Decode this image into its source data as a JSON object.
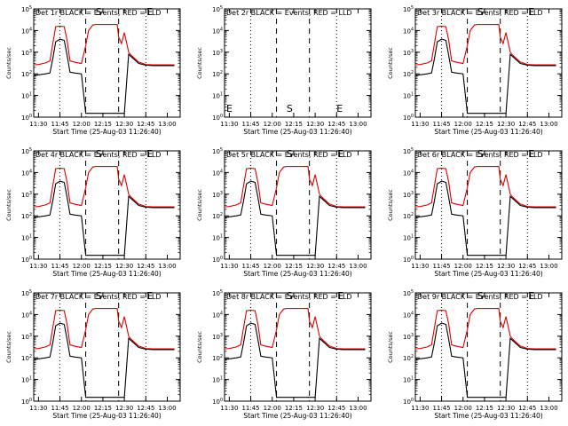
{
  "figure": {
    "background": "#ffffff",
    "colors": {
      "events": "#000000",
      "lld": "#dd0000"
    }
  },
  "panel_template": {
    "title_suffix": " BLACK = Events, RED = LLD",
    "xlabel": "Start Time (25-Aug-03 11:26:40)",
    "ylabel": "Counts/sec",
    "xticks": [
      "11:30",
      "11:45",
      "12:00",
      "12:15",
      "12:30",
      "12:45",
      "13:00"
    ],
    "yticks": [
      "10",
      "10",
      "10",
      "10",
      "10",
      "10"
    ],
    "ytick_exponents": [
      "0",
      "1",
      "2",
      "3",
      "4",
      "5"
    ],
    "markers": [
      "E",
      "S",
      "E"
    ]
  },
  "chart_data": [
    {
      "type": "line",
      "title": "Det 1r BLACK = Events, RED = LLD",
      "empty": false,
      "xlabel": "Start Time (25-Aug-03 11:26:40)",
      "ylabel": "Counts/sec",
      "yscale": "log",
      "ylim": [
        1,
        100000
      ],
      "x": [
        "11:26:40",
        "11:30",
        "11:35",
        "11:38",
        "11:40",
        "11:42",
        "11:45",
        "11:48",
        "11:50",
        "11:52",
        "11:55",
        "12:00",
        "12:03",
        "12:05",
        "12:08",
        "12:10",
        "12:15",
        "12:20",
        "12:25",
        "12:26",
        "12:28",
        "12:30",
        "12:33",
        "12:35",
        "12:40",
        "12:45",
        "12:50",
        "12:55",
        "13:00",
        "13:05"
      ],
      "series": [
        {
          "name": "Events",
          "color": "#000000",
          "values": [
            80,
            90,
            100,
            110,
            500,
            3000,
            4000,
            3500,
            700,
            120,
            110,
            100,
            1.5,
            1.5,
            1.5,
            1.5,
            1.5,
            1.5,
            1.5,
            1.5,
            1.5,
            1.5,
            800,
            600,
            300,
            250,
            240,
            240,
            240,
            240
          ]
        },
        {
          "name": "LLD",
          "color": "#dd0000",
          "values": [
            260,
            270,
            320,
            400,
            2500,
            15000,
            16000,
            15000,
            3500,
            400,
            350,
            300,
            2000,
            10000,
            18000,
            19000,
            19000,
            19000,
            19000,
            5000,
            2500,
            8000,
            1000,
            700,
            350,
            270,
            260,
            260,
            260,
            260
          ]
        }
      ]
    },
    {
      "type": "line",
      "title": "Det 2r BLACK = Events, RED = LLD",
      "empty": true,
      "xlabel": "Start Time (25-Aug-03 11:26:40)",
      "ylabel": "Counts/sec",
      "yscale": "log",
      "ylim": [
        1,
        100000
      ],
      "x": [],
      "series": []
    },
    {
      "type": "line",
      "title": "Det 3r BLACK = Events, RED = LLD",
      "empty": false,
      "xlabel": "Start Time (25-Aug-03 11:26:40)",
      "ylabel": "Counts/sec",
      "yscale": "log",
      "ylim": [
        1,
        100000
      ],
      "x": [
        "11:26:40",
        "11:30",
        "11:35",
        "11:38",
        "11:40",
        "11:42",
        "11:45",
        "11:48",
        "11:50",
        "11:52",
        "11:55",
        "12:00",
        "12:03",
        "12:05",
        "12:08",
        "12:10",
        "12:15",
        "12:20",
        "12:25",
        "12:26",
        "12:28",
        "12:30",
        "12:33",
        "12:35",
        "12:40",
        "12:45",
        "12:50",
        "12:55",
        "13:00",
        "13:05"
      ],
      "series": [
        {
          "name": "Events",
          "color": "#000000",
          "values": [
            80,
            90,
            100,
            110,
            500,
            3000,
            4000,
            3500,
            700,
            120,
            110,
            100,
            1.5,
            1.5,
            1.5,
            1.5,
            1.5,
            1.5,
            1.5,
            1.5,
            1.5,
            1.5,
            800,
            600,
            300,
            250,
            240,
            240,
            240,
            240
          ]
        },
        {
          "name": "LLD",
          "color": "#dd0000",
          "values": [
            260,
            270,
            320,
            400,
            2500,
            15000,
            16000,
            15000,
            3500,
            400,
            350,
            300,
            2000,
            10000,
            18000,
            19000,
            19000,
            19000,
            19000,
            5000,
            2500,
            8000,
            1000,
            700,
            350,
            270,
            260,
            260,
            260,
            260
          ]
        }
      ]
    },
    {
      "type": "line",
      "title": "Det 4r BLACK = Events, RED = LLD",
      "empty": false,
      "xlabel": "Start Time (25-Aug-03 11:26:40)",
      "ylabel": "Counts/sec",
      "yscale": "log",
      "ylim": [
        1,
        100000
      ],
      "x": [
        "11:26:40",
        "11:30",
        "11:35",
        "11:38",
        "11:40",
        "11:42",
        "11:45",
        "11:48",
        "11:50",
        "11:52",
        "11:55",
        "12:00",
        "12:03",
        "12:05",
        "12:08",
        "12:10",
        "12:15",
        "12:20",
        "12:25",
        "12:26",
        "12:28",
        "12:30",
        "12:33",
        "12:35",
        "12:40",
        "12:45",
        "12:50",
        "12:55",
        "13:00",
        "13:05"
      ],
      "series": [
        {
          "name": "Events",
          "color": "#000000",
          "values": [
            80,
            90,
            100,
            110,
            500,
            3000,
            4000,
            3500,
            700,
            120,
            110,
            100,
            1.5,
            1.5,
            1.5,
            1.5,
            1.5,
            1.5,
            1.5,
            1.5,
            1.5,
            1.5,
            800,
            600,
            300,
            250,
            240,
            240,
            240,
            240
          ]
        },
        {
          "name": "LLD",
          "color": "#dd0000",
          "values": [
            260,
            270,
            320,
            400,
            2500,
            15000,
            16000,
            15000,
            3500,
            400,
            350,
            300,
            2000,
            10000,
            18000,
            19000,
            19000,
            19000,
            19000,
            5000,
            2500,
            8000,
            1000,
            700,
            350,
            270,
            260,
            260,
            260,
            260
          ]
        }
      ]
    },
    {
      "type": "line",
      "title": "Det 5r BLACK = Events, RED = LLD",
      "empty": false,
      "xlabel": "Start Time (25-Aug-03 11:26:40)",
      "ylabel": "Counts/sec",
      "yscale": "log",
      "ylim": [
        1,
        100000
      ],
      "x": [
        "11:26:40",
        "11:30",
        "11:35",
        "11:38",
        "11:40",
        "11:42",
        "11:45",
        "11:48",
        "11:50",
        "11:52",
        "11:55",
        "12:00",
        "12:03",
        "12:05",
        "12:08",
        "12:10",
        "12:15",
        "12:20",
        "12:25",
        "12:26",
        "12:28",
        "12:30",
        "12:33",
        "12:35",
        "12:40",
        "12:45",
        "12:50",
        "12:55",
        "13:00",
        "13:05"
      ],
      "series": [
        {
          "name": "Events",
          "color": "#000000",
          "values": [
            80,
            90,
            100,
            110,
            500,
            3000,
            4000,
            3500,
            700,
            120,
            110,
            100,
            1.5,
            1.5,
            1.5,
            1.5,
            1.5,
            1.5,
            1.5,
            1.5,
            1.5,
            1.5,
            800,
            600,
            300,
            250,
            240,
            240,
            240,
            240
          ]
        },
        {
          "name": "LLD",
          "color": "#dd0000",
          "values": [
            260,
            270,
            320,
            400,
            2500,
            15000,
            16000,
            15000,
            3500,
            400,
            350,
            300,
            2000,
            10000,
            18000,
            19000,
            19000,
            19000,
            19000,
            5000,
            2500,
            8000,
            1000,
            700,
            350,
            270,
            260,
            260,
            260,
            260
          ]
        }
      ]
    },
    {
      "type": "line",
      "title": "Det 6r BLACK = Events, RED = LLD",
      "empty": false,
      "xlabel": "Start Time (25-Aug-03 11:26:40)",
      "ylabel": "Counts/sec",
      "yscale": "log",
      "ylim": [
        1,
        100000
      ],
      "x": [
        "11:26:40",
        "11:30",
        "11:35",
        "11:38",
        "11:40",
        "11:42",
        "11:45",
        "11:48",
        "11:50",
        "11:52",
        "11:55",
        "12:00",
        "12:03",
        "12:05",
        "12:08",
        "12:10",
        "12:15",
        "12:20",
        "12:25",
        "12:26",
        "12:28",
        "12:30",
        "12:33",
        "12:35",
        "12:40",
        "12:45",
        "12:50",
        "12:55",
        "13:00",
        "13:05"
      ],
      "series": [
        {
          "name": "Events",
          "color": "#000000",
          "values": [
            80,
            90,
            100,
            110,
            500,
            3000,
            4000,
            3500,
            700,
            120,
            110,
            100,
            1.5,
            1.5,
            1.5,
            1.5,
            1.5,
            1.5,
            1.5,
            1.5,
            1.5,
            1.5,
            800,
            600,
            300,
            250,
            240,
            240,
            240,
            240
          ]
        },
        {
          "name": "LLD",
          "color": "#dd0000",
          "values": [
            260,
            270,
            320,
            400,
            2500,
            15000,
            16000,
            15000,
            3500,
            400,
            350,
            300,
            2000,
            10000,
            18000,
            19000,
            19000,
            19000,
            19000,
            5000,
            2500,
            8000,
            1000,
            700,
            350,
            270,
            260,
            260,
            260,
            260
          ]
        }
      ]
    },
    {
      "type": "line",
      "title": "Det 7r BLACK = Events, RED = LLD",
      "empty": false,
      "xlabel": "Start Time (25-Aug-03 11:26:40)",
      "ylabel": "Counts/sec",
      "yscale": "log",
      "ylim": [
        1,
        100000
      ],
      "x": [
        "11:26:40",
        "11:30",
        "11:35",
        "11:38",
        "11:40",
        "11:42",
        "11:45",
        "11:48",
        "11:50",
        "11:52",
        "11:55",
        "12:00",
        "12:03",
        "12:05",
        "12:08",
        "12:10",
        "12:15",
        "12:20",
        "12:25",
        "12:26",
        "12:28",
        "12:30",
        "12:33",
        "12:35",
        "12:40",
        "12:45",
        "12:50",
        "12:55",
        "13:00",
        "13:05"
      ],
      "series": [
        {
          "name": "Events",
          "color": "#000000",
          "values": [
            80,
            90,
            100,
            110,
            500,
            3000,
            4000,
            3500,
            700,
            120,
            110,
            100,
            1.5,
            1.5,
            1.5,
            1.5,
            1.5,
            1.5,
            1.5,
            1.5,
            1.5,
            1.5,
            800,
            600,
            300,
            250,
            240,
            240,
            240,
            240
          ]
        },
        {
          "name": "LLD",
          "color": "#dd0000",
          "values": [
            260,
            270,
            320,
            400,
            2500,
            15000,
            16000,
            15000,
            3500,
            400,
            350,
            300,
            2000,
            10000,
            18000,
            19000,
            19000,
            19000,
            19000,
            5000,
            2500,
            8000,
            1000,
            700,
            350,
            270,
            260,
            260,
            260,
            260
          ]
        }
      ]
    },
    {
      "type": "line",
      "title": "Det 8r BLACK = Events, RED = LLD",
      "empty": false,
      "xlabel": "Start Time (25-Aug-03 11:26:40)",
      "ylabel": "Counts/sec",
      "yscale": "log",
      "ylim": [
        1,
        100000
      ],
      "x": [
        "11:26:40",
        "11:30",
        "11:35",
        "11:38",
        "11:40",
        "11:42",
        "11:45",
        "11:48",
        "11:50",
        "11:52",
        "11:55",
        "12:00",
        "12:03",
        "12:05",
        "12:08",
        "12:10",
        "12:15",
        "12:20",
        "12:25",
        "12:26",
        "12:28",
        "12:30",
        "12:33",
        "12:35",
        "12:40",
        "12:45",
        "12:50",
        "12:55",
        "13:00",
        "13:05"
      ],
      "series": [
        {
          "name": "Events",
          "color": "#000000",
          "values": [
            80,
            90,
            100,
            110,
            500,
            3000,
            4000,
            3500,
            700,
            120,
            110,
            100,
            1.5,
            1.5,
            1.5,
            1.5,
            1.5,
            1.5,
            1.5,
            1.5,
            1.5,
            1.5,
            800,
            600,
            300,
            250,
            240,
            240,
            240,
            240
          ]
        },
        {
          "name": "LLD",
          "color": "#dd0000",
          "values": [
            260,
            270,
            320,
            400,
            2500,
            15000,
            16000,
            15000,
            3500,
            400,
            350,
            300,
            2000,
            10000,
            18000,
            19000,
            19000,
            19000,
            19000,
            5000,
            2500,
            8000,
            1000,
            700,
            350,
            270,
            260,
            260,
            260,
            260
          ]
        }
      ]
    },
    {
      "type": "line",
      "title": "Det 9r BLACK = Events, RED = LLD",
      "empty": false,
      "xlabel": "Start Time (25-Aug-03 11:26:40)",
      "ylabel": "Counts/sec",
      "yscale": "log",
      "ylim": [
        1,
        100000
      ],
      "x": [
        "11:26:40",
        "11:30",
        "11:35",
        "11:38",
        "11:40",
        "11:42",
        "11:45",
        "11:48",
        "11:50",
        "11:52",
        "11:55",
        "12:00",
        "12:03",
        "12:05",
        "12:08",
        "12:10",
        "12:15",
        "12:20",
        "12:25",
        "12:26",
        "12:28",
        "12:30",
        "12:33",
        "12:35",
        "12:40",
        "12:45",
        "12:50",
        "12:55",
        "13:00",
        "13:05"
      ],
      "series": [
        {
          "name": "Events",
          "color": "#000000",
          "values": [
            80,
            90,
            100,
            110,
            500,
            3000,
            4000,
            3500,
            700,
            120,
            110,
            100,
            1.5,
            1.5,
            1.5,
            1.5,
            1.5,
            1.5,
            1.5,
            1.5,
            1.5,
            1.5,
            800,
            600,
            300,
            250,
            240,
            240,
            240,
            240
          ]
        },
        {
          "name": "LLD",
          "color": "#dd0000",
          "values": [
            260,
            270,
            320,
            400,
            2500,
            15000,
            16000,
            15000,
            3500,
            400,
            350,
            300,
            2000,
            10000,
            18000,
            19000,
            19000,
            19000,
            19000,
            5000,
            2500,
            8000,
            1000,
            700,
            350,
            270,
            260,
            260,
            260,
            260
          ]
        }
      ]
    }
  ]
}
